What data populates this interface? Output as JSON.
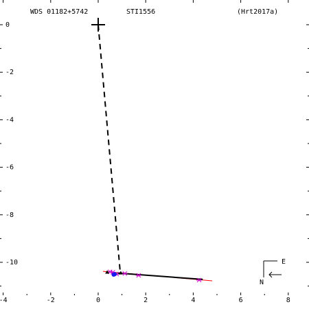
{
  "chart_data": {
    "type": "scatter",
    "header": {
      "left": "WDS 01182+5742",
      "center": "STI1556",
      "right": "(Hrt2017a)"
    },
    "xlim": [
      -4,
      9
    ],
    "ylim": [
      -11.5,
      0.6
    ],
    "x_ticks": [
      -4,
      -2,
      0,
      2,
      4,
      6,
      8
    ],
    "y_ticks": [
      0,
      -2,
      -4,
      -6,
      -8,
      -10
    ],
    "x_tick_labels": [
      "-4",
      "-2",
      "0",
      "2",
      "4",
      "6",
      "8"
    ],
    "y_tick_labels": [
      "0",
      "-2",
      "-4",
      "-6",
      "-8",
      "-10"
    ],
    "primary": {
      "x": 0,
      "y": 0
    },
    "connector": {
      "from": [
        0,
        0
      ],
      "to": [
        0.93,
        -10.45
      ]
    },
    "orbit_line": {
      "from": [
        0.2,
        -10.38
      ],
      "to": [
        4.8,
        -10.78
      ]
    },
    "fit_line": {
      "from": [
        0.8,
        -10.45
      ],
      "to": [
        4.4,
        -10.72
      ]
    },
    "observations": [
      {
        "x": 0.5,
        "y": -10.4,
        "marker": "star",
        "color": "#cc00cc"
      },
      {
        "x": 0.62,
        "y": -10.42,
        "marker": "star",
        "color": "#cc00cc"
      },
      {
        "x": 0.78,
        "y": -10.5,
        "marker": "star",
        "color": "#cc00cc"
      },
      {
        "x": 1.12,
        "y": -10.47,
        "marker": "star",
        "color": "#cc00cc"
      },
      {
        "x": 1.7,
        "y": -10.55,
        "marker": "star",
        "color": "#cc00cc"
      },
      {
        "x": 4.25,
        "y": -10.75,
        "marker": "star",
        "color": "#cc00cc"
      },
      {
        "x": 0.7,
        "y": -10.5,
        "marker": "dot",
        "color": "#1a1aee"
      },
      {
        "x": 0.65,
        "y": -10.52,
        "marker": "dot",
        "color": "#1a1aee"
      },
      {
        "x": 0.95,
        "y": -10.45,
        "marker": "triangle",
        "color": "#000000"
      },
      {
        "x": 0.38,
        "y": -10.42,
        "marker": "triangle",
        "color": "#000000"
      }
    ],
    "compass": {
      "east": "E",
      "north": "N"
    },
    "colors": {
      "axis": "#000000",
      "orbit": "#ff0000",
      "connector": "#000000"
    }
  }
}
